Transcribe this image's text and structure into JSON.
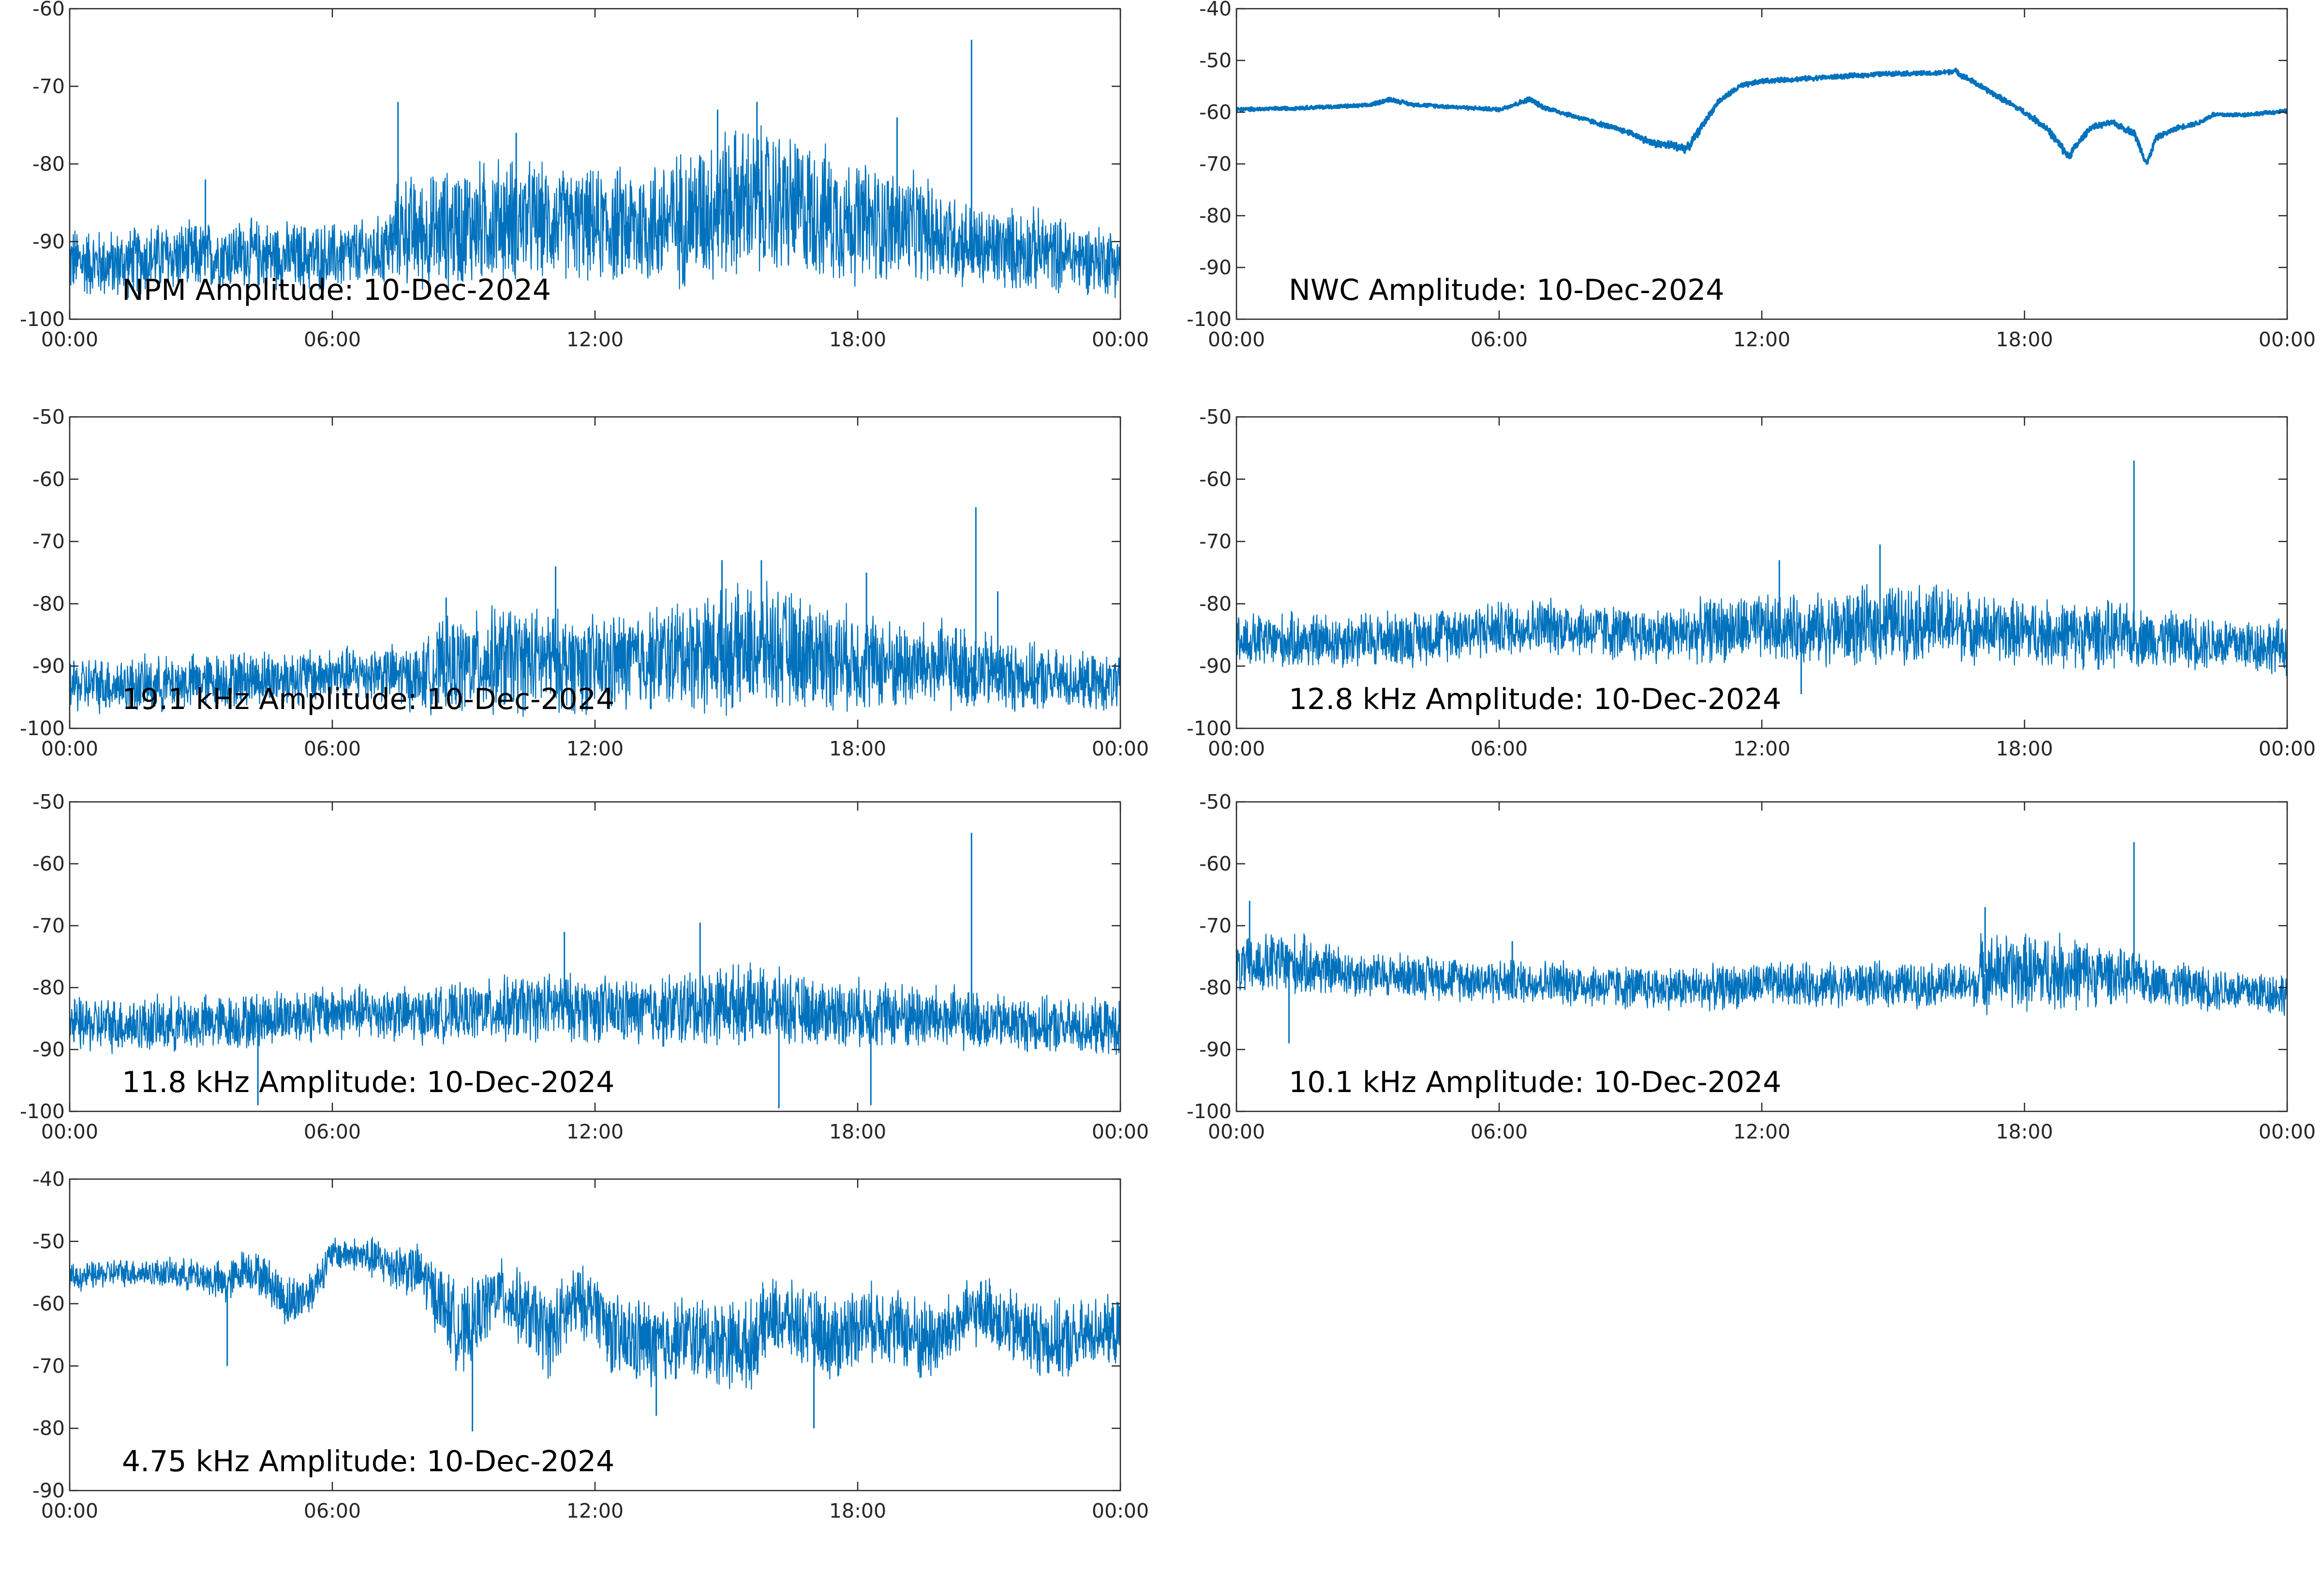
{
  "figure": {
    "line_color": "#0072BD",
    "axis_color": "#262626",
    "background": "#ffffff"
  },
  "chart_data": [
    {
      "type": "line",
      "title": "NPM Amplitude: 10-Dec-2024",
      "xlabel": "",
      "ylabel": "",
      "x_tick_labels": [
        "00:00",
        "06:00",
        "12:00",
        "18:00",
        "00:00"
      ],
      "xlim": [
        0,
        24
      ],
      "ylim": [
        -100,
        -60
      ],
      "y_ticks": [
        -100,
        -90,
        -80,
        -70,
        -60
      ],
      "grid": false,
      "series": [
        {
          "x": [
            0,
            1,
            2,
            3,
            4,
            5,
            6,
            7,
            7.4,
            7.5,
            8,
            9,
            10,
            11,
            12,
            13,
            14,
            15,
            16,
            17,
            18,
            19,
            20,
            20.8,
            21,
            22,
            23,
            24
          ],
          "y": [
            -92.5,
            -93,
            -92,
            -92,
            -91.5,
            -92,
            -92,
            -91.5,
            -90,
            -88,
            -89,
            -88,
            -87,
            -87.5,
            -88,
            -88,
            -87,
            -85,
            -85,
            -86,
            -87.5,
            -88,
            -89,
            -91,
            -91,
            -91,
            -92,
            -92.5
          ],
          "spread": [
            5,
            5,
            5,
            5,
            5,
            5,
            5,
            5,
            6,
            8,
            8,
            9,
            9,
            8,
            8,
            9,
            10,
            11,
            11,
            10,
            9,
            8,
            7,
            6,
            6,
            6,
            5,
            5
          ],
          "spikes": [
            [
              3.1,
              -82
            ],
            [
              7.5,
              -72
            ],
            [
              10.2,
              -76
            ],
            [
              14.8,
              -73
            ],
            [
              15.7,
              -72
            ],
            [
              18.9,
              -74
            ],
            [
              20.6,
              -64
            ]
          ]
        }
      ]
    },
    {
      "type": "line",
      "title": "NWC Amplitude: 10-Dec-2024",
      "xlabel": "",
      "ylabel": "",
      "x_tick_labels": [
        "00:00",
        "06:00",
        "12:00",
        "18:00",
        "00:00"
      ],
      "xlim": [
        0,
        24
      ],
      "ylim": [
        -100,
        -40
      ],
      "y_ticks": [
        -100,
        -90,
        -80,
        -70,
        -60,
        -50,
        -40
      ],
      "grid": false,
      "series": [
        {
          "x": [
            0,
            1,
            2,
            3,
            3.5,
            4,
            5,
            6,
            6.7,
            7,
            8,
            9,
            9.5,
            10,
            10.3,
            11,
            11.5,
            12,
            13,
            14,
            15,
            16,
            16.4,
            17,
            18,
            18.5,
            19,
            19.5,
            20,
            20.5,
            20.8,
            21,
            21.5,
            22,
            22.3,
            23,
            24
          ],
          "y": [
            -59.5,
            -59.3,
            -59,
            -58.7,
            -57.5,
            -58.5,
            -59,
            -59.5,
            -57.5,
            -59,
            -61.5,
            -64,
            -66,
            -66.5,
            -67,
            -58,
            -55,
            -54,
            -53.5,
            -53,
            -52.5,
            -52.5,
            -52,
            -55,
            -60,
            -63,
            -68.5,
            -63,
            -62,
            -64,
            -70,
            -65,
            -63,
            -62,
            -60.5,
            -60.5,
            -59.8
          ],
          "spread": [
            0.4,
            0.4,
            0.4,
            0.4,
            0.5,
            0.4,
            0.4,
            0.4,
            0.6,
            0.5,
            0.5,
            0.6,
            0.8,
            1,
            1,
            0.6,
            0.6,
            0.5,
            0.5,
            0.5,
            0.5,
            0.5,
            0.6,
            0.6,
            0.6,
            0.8,
            1,
            0.6,
            0.6,
            0.8,
            0.8,
            0.6,
            0.5,
            0.5,
            0.5,
            0.4,
            0.4
          ],
          "spikes": []
        }
      ]
    },
    {
      "type": "line",
      "title": "19.1 kHz Amplitude: 10-Dec-2024",
      "xlabel": "",
      "ylabel": "",
      "x_tick_labels": [
        "00:00",
        "06:00",
        "12:00",
        "18:00",
        "00:00"
      ],
      "xlim": [
        0,
        24
      ],
      "ylim": [
        -100,
        -50
      ],
      "y_ticks": [
        -100,
        -90,
        -80,
        -70,
        -60,
        -50
      ],
      "grid": false,
      "series": [
        {
          "x": [
            0,
            2,
            4,
            6,
            7,
            8,
            8.5,
            9,
            10,
            11,
            12,
            13,
            14,
            15,
            16,
            17,
            18,
            19,
            20,
            21,
            22,
            23,
            24
          ],
          "y": [
            -93,
            -93,
            -92,
            -91.5,
            -91,
            -92,
            -90,
            -90,
            -89,
            -89,
            -90,
            -89,
            -88,
            -87.5,
            -87,
            -88,
            -89,
            -90,
            -90,
            -91,
            -92,
            -92.5,
            -93
          ],
          "spread": [
            5,
            5,
            5,
            5,
            5,
            6,
            8,
            9,
            10,
            9,
            9,
            9,
            10,
            11,
            11,
            10,
            9,
            8,
            8,
            7,
            6,
            5,
            5
          ],
          "spikes": [
            [
              8.6,
              -79
            ],
            [
              11.1,
              -74
            ],
            [
              14.9,
              -73
            ],
            [
              15.8,
              -73
            ],
            [
              18.2,
              -75
            ],
            [
              20.7,
              -64.5
            ],
            [
              21.2,
              -78
            ]
          ]
        }
      ]
    },
    {
      "type": "line",
      "title": "12.8 kHz Amplitude: 10-Dec-2024",
      "xlabel": "",
      "ylabel": "",
      "x_tick_labels": [
        "00:00",
        "06:00",
        "12:00",
        "18:00",
        "00:00"
      ],
      "xlim": [
        0,
        24
      ],
      "ylim": [
        -100,
        -50
      ],
      "y_ticks": [
        -100,
        -90,
        -80,
        -70,
        -60,
        -50
      ],
      "grid": false,
      "series": [
        {
          "x": [
            0,
            2,
            4,
            5,
            6,
            7,
            8,
            9,
            10,
            11,
            12,
            13,
            14,
            15,
            16,
            17,
            18,
            19,
            20,
            21,
            22,
            23,
            24
          ],
          "y": [
            -86,
            -86,
            -85.5,
            -84.5,
            -84,
            -83.5,
            -84,
            -85,
            -85,
            -84,
            -84,
            -84,
            -84,
            -83,
            -83,
            -84,
            -84.5,
            -85,
            -85,
            -85.5,
            -86,
            -86.5,
            -87
          ],
          "spread": [
            5,
            5,
            5,
            5,
            5,
            5,
            5,
            5,
            5,
            6,
            6,
            6,
            7,
            7,
            7,
            6,
            6,
            6,
            6,
            5,
            5,
            5,
            5
          ],
          "spikes": [
            [
              12.4,
              -73
            ],
            [
              14.7,
              -70.5
            ],
            [
              20.5,
              -57
            ],
            [
              12.9,
              -94.5
            ]
          ]
        }
      ]
    },
    {
      "type": "line",
      "title": "11.8 kHz Amplitude: 10-Dec-2024",
      "xlabel": "",
      "ylabel": "",
      "x_tick_labels": [
        "00:00",
        "06:00",
        "12:00",
        "18:00",
        "00:00"
      ],
      "xlim": [
        0,
        24
      ],
      "ylim": [
        -100,
        -50
      ],
      "y_ticks": [
        -100,
        -90,
        -80,
        -70,
        -60,
        -50
      ],
      "grid": false,
      "series": [
        {
          "x": [
            0,
            2,
            4,
            5,
            6,
            7,
            8,
            9,
            10,
            11,
            12,
            13,
            14,
            15,
            16,
            17,
            18,
            19,
            20,
            21,
            22,
            23,
            24
          ],
          "y": [
            -86,
            -86,
            -85.5,
            -84.5,
            -84,
            -84,
            -84.5,
            -84,
            -83.5,
            -83,
            -83.5,
            -84,
            -83.5,
            -82.5,
            -83,
            -84,
            -84,
            -84.5,
            -85,
            -85.5,
            -86,
            -86.5,
            -86.5
          ],
          "spread": [
            5,
            5,
            5,
            5,
            5,
            5,
            5,
            5,
            6,
            6,
            6,
            6,
            7,
            7,
            7,
            6,
            6,
            6,
            6,
            5,
            5,
            5,
            5
          ],
          "spikes": [
            [
              11.3,
              -71
            ],
            [
              14.4,
              -69.5
            ],
            [
              20.6,
              -55
            ],
            [
              16.2,
              -99.5
            ],
            [
              18.3,
              -99
            ],
            [
              4.3,
              -99
            ]
          ]
        }
      ]
    },
    {
      "type": "line",
      "title": "10.1 kHz Amplitude: 10-Dec-2024",
      "xlabel": "",
      "ylabel": "",
      "x_tick_labels": [
        "00:00",
        "06:00",
        "12:00",
        "18:00",
        "00:00"
      ],
      "xlim": [
        0,
        24
      ],
      "ylim": [
        -100,
        -50
      ],
      "y_ticks": [
        -100,
        -90,
        -80,
        -70,
        -60,
        -50
      ],
      "grid": false,
      "series": [
        {
          "x": [
            0,
            1,
            2,
            3,
            4,
            5,
            6,
            7,
            8,
            9,
            10,
            11,
            12,
            13,
            14,
            15,
            16,
            16.9,
            17,
            18,
            19,
            20,
            21,
            22,
            23,
            24
          ],
          "y": [
            -77,
            -76,
            -77,
            -78,
            -78,
            -78.5,
            -79,
            -79,
            -79.5,
            -80,
            -80,
            -80,
            -79.5,
            -79.5,
            -79.5,
            -79.5,
            -79.5,
            -79.5,
            -77.5,
            -77.5,
            -77.5,
            -78,
            -79,
            -80,
            -80.5,
            -81
          ],
          "spread": [
            5,
            6,
            5,
            4,
            4,
            4,
            4,
            4,
            4,
            4,
            4,
            4,
            4,
            4,
            4,
            4,
            4,
            4,
            7,
            7,
            7,
            5,
            4,
            4,
            4,
            4
          ],
          "spikes": [
            [
              0.3,
              -66
            ],
            [
              1.2,
              -89
            ],
            [
              6.3,
              -72.5
            ],
            [
              17.1,
              -67
            ],
            [
              20.5,
              -56.5
            ]
          ]
        }
      ]
    },
    {
      "type": "line",
      "title": "4.75 kHz Amplitude: 10-Dec-2024",
      "xlabel": "",
      "ylabel": "",
      "x_tick_labels": [
        "00:00",
        "06:00",
        "12:00",
        "18:00",
        "00:00"
      ],
      "xlim": [
        0,
        24
      ],
      "ylim": [
        -90,
        -40
      ],
      "y_ticks": [
        -90,
        -80,
        -70,
        -60,
        -50,
        -40
      ],
      "grid": false,
      "series": [
        {
          "x": [
            0,
            1,
            2,
            3,
            3.6,
            4,
            4.5,
            5,
            5.5,
            6,
            6.5,
            7,
            8,
            8.5,
            9,
            9.3,
            9.8,
            10.5,
            11,
            11.5,
            12,
            12.5,
            13,
            13.5,
            14,
            14.5,
            15,
            15.5,
            16,
            16.5,
            17,
            17.5,
            18,
            18.5,
            19,
            19.5,
            20,
            20.5,
            21,
            21.5,
            22,
            22.5,
            23,
            23.5,
            24
          ],
          "y": [
            -56,
            -55,
            -55,
            -55.5,
            -57,
            -54,
            -56,
            -60,
            -58,
            -52,
            -52,
            -53,
            -55,
            -60,
            -65,
            -62,
            -58,
            -62,
            -65,
            -60,
            -60,
            -66,
            -66,
            -67,
            -65,
            -66,
            -66,
            -67,
            -62,
            -63,
            -64,
            -66,
            -63,
            -63,
            -64,
            -66,
            -65,
            -62,
            -61,
            -64,
            -65,
            -66,
            -66,
            -64,
            -65
          ],
          "spread": [
            2.5,
            2.5,
            2.5,
            3,
            4,
            3.5,
            4,
            5,
            4,
            3,
            3,
            4,
            5,
            7,
            8,
            7,
            6,
            7,
            8,
            7,
            6,
            8,
            8,
            8,
            7,
            8,
            8,
            8,
            7,
            7,
            7,
            8,
            7,
            7,
            7,
            8,
            7,
            6,
            6,
            7,
            7,
            7,
            7,
            6,
            6
          ],
          "spikes": [
            [
              9.2,
              -80.5
            ],
            [
              17,
              -80
            ],
            [
              3.6,
              -70
            ],
            [
              7,
              -50.5
            ],
            [
              13.4,
              -78
            ]
          ]
        }
      ]
    }
  ]
}
